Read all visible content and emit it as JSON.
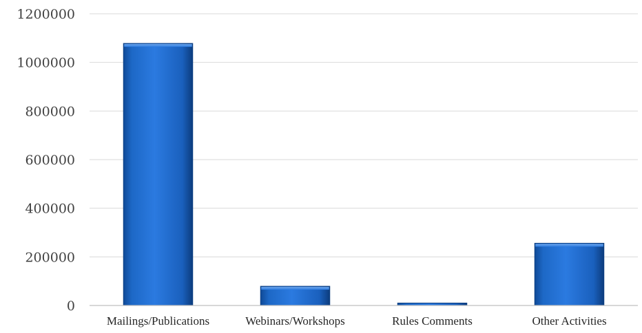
{
  "chart_data": {
    "type": "bar",
    "title": "",
    "xlabel": "",
    "ylabel": "",
    "categories": [
      "Mailings/Publications",
      "Webinars/Workshops",
      "Rules Comments",
      "Other Activities"
    ],
    "values": [
      1078000,
      79000,
      10000,
      256000
    ],
    "ylim": [
      0,
      1200000
    ],
    "yticks": [
      "0",
      "200000",
      "400000",
      "600000",
      "800000",
      "1000000",
      "1200000"
    ],
    "grid": true,
    "legend": "none",
    "bar_color": "#1f6fd1",
    "bar_edge_color": "#0d3f82"
  }
}
